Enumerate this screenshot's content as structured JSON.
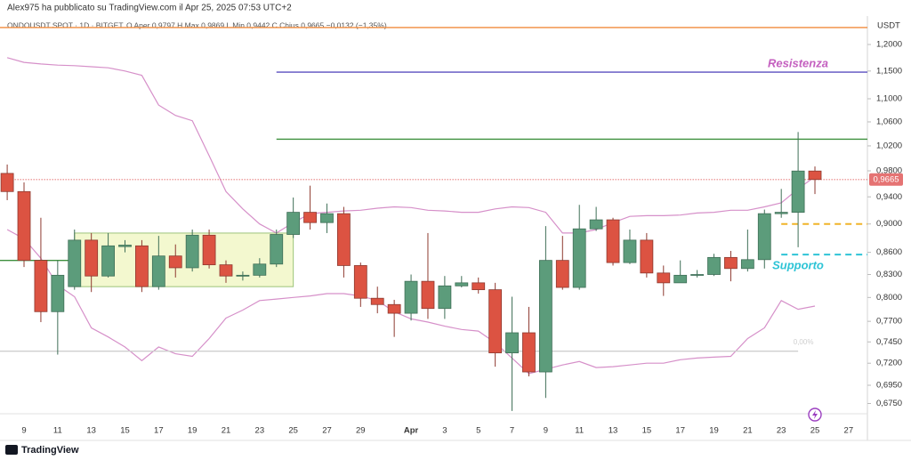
{
  "header": {
    "author_line": "Alex975 ha pubblicato su TradingView.com il Apr 25, 2025 07:53 UTC+2",
    "logo": "TradingView"
  },
  "chart_data": {
    "type": "candlestick",
    "title": "ONDOUSDT SPOT · 1D · BITGET",
    "subtitle": "O Aper 0,9797  H Max 0,9869  L Min 0,9442  C Chius 0,9665  −0,0132 (−1,35%)",
    "y_axis_label": "USDT",
    "log_scale": true,
    "grid": false,
    "up_color": "#5c9c7b",
    "down_color": "#dc5342",
    "categories": [
      null,
      "9",
      null,
      "11",
      null,
      "13",
      null,
      "15",
      null,
      "17",
      null,
      "19",
      null,
      "21",
      null,
      "23",
      null,
      "25",
      null,
      "27",
      null,
      "29",
      null,
      null,
      "Apr",
      null,
      "3",
      null,
      "5",
      null,
      "7",
      null,
      "9",
      null,
      "11",
      null,
      "13",
      null,
      "15",
      null,
      "17",
      null,
      "19",
      null,
      "21",
      null,
      "23",
      null,
      "25",
      null,
      "27"
    ],
    "open": [
      0.976,
      0.948,
      0.849,
      0.782,
      0.814,
      0.877,
      0.828,
      0.868,
      0.869,
      0.814,
      0.855,
      0.839,
      0.884,
      0.843,
      0.828,
      0.829,
      0.844,
      0.885,
      0.917,
      0.902,
      0.915,
      0.842,
      0.799,
      0.791,
      0.78,
      0.821,
      0.786,
      0.815,
      0.819,
      0.81,
      0.732,
      0.756,
      0.71,
      0.849,
      0.813,
      0.893,
      0.906,
      0.846,
      0.877,
      0.832,
      0.819,
      0.829,
      0.83,
      0.853,
      0.838,
      0.85,
      0.915,
      0.917,
      0.9797,
      null,
      null
    ],
    "high": [
      0.99,
      0.962,
      0.909,
      0.849,
      0.892,
      0.887,
      0.887,
      0.877,
      0.877,
      0.883,
      0.871,
      0.892,
      0.892,
      0.849,
      0.834,
      0.852,
      0.892,
      0.939,
      0.957,
      0.93,
      0.925,
      0.846,
      0.814,
      0.797,
      0.83,
      0.887,
      0.828,
      0.828,
      0.826,
      0.819,
      0.801,
      0.788,
      0.897,
      0.883,
      0.928,
      0.925,
      0.909,
      0.892,
      0.887,
      0.842,
      0.849,
      0.836,
      0.858,
      0.862,
      0.892,
      0.921,
      0.952,
      1.043,
      0.9869,
      null,
      null
    ],
    "low": [
      0.935,
      0.84,
      0.769,
      0.73,
      0.81,
      0.807,
      0.826,
      0.86,
      0.807,
      0.81,
      0.826,
      0.834,
      0.838,
      0.819,
      0.822,
      0.826,
      0.84,
      0.88,
      0.892,
      0.887,
      0.826,
      0.788,
      0.78,
      0.751,
      0.771,
      0.773,
      0.773,
      0.813,
      0.805,
      0.716,
      0.667,
      0.705,
      0.681,
      0.81,
      0.81,
      0.89,
      0.842,
      0.844,
      0.826,
      0.802,
      0.819,
      0.826,
      0.828,
      0.821,
      0.834,
      0.838,
      0.909,
      0.867,
      0.9442,
      null,
      null
    ],
    "close": [
      0.948,
      0.849,
      0.782,
      0.829,
      0.877,
      0.828,
      0.869,
      0.87,
      0.814,
      0.855,
      0.839,
      0.884,
      0.843,
      0.828,
      0.829,
      0.844,
      0.885,
      0.917,
      0.902,
      0.915,
      0.842,
      0.799,
      0.791,
      0.78,
      0.821,
      0.786,
      0.815,
      0.819,
      0.81,
      0.732,
      0.756,
      0.71,
      0.849,
      0.813,
      0.893,
      0.906,
      0.846,
      0.877,
      0.832,
      0.819,
      0.829,
      0.83,
      0.853,
      0.838,
      0.85,
      0.915,
      0.917,
      0.9797,
      0.9665,
      null,
      null
    ],
    "bands": {
      "color": "#d690c9",
      "upper": [
        1.175,
        1.166,
        1.163,
        1.161,
        1.16,
        1.158,
        1.156,
        1.15,
        1.142,
        1.089,
        1.071,
        1.062,
        1.004,
        0.948,
        0.922,
        0.9,
        0.887,
        0.902,
        0.915,
        0.917,
        0.919,
        0.92,
        0.923,
        0.925,
        0.924,
        0.92,
        0.919,
        0.917,
        0.917,
        0.922,
        0.925,
        0.924,
        0.917,
        0.887,
        0.887,
        0.892,
        0.902,
        0.911,
        0.912,
        0.912,
        0.913,
        0.916,
        0.917,
        0.92,
        0.92,
        0.925,
        0.931,
        0.952,
        0.971,
        null,
        null
      ],
      "lower": [
        0.892,
        0.879,
        0.852,
        0.816,
        0.801,
        0.762,
        0.751,
        0.739,
        0.723,
        0.739,
        0.731,
        0.728,
        0.749,
        0.774,
        0.784,
        0.796,
        0.798,
        0.8,
        0.802,
        0.805,
        0.805,
        0.802,
        0.796,
        0.782,
        0.773,
        0.769,
        0.764,
        0.76,
        0.758,
        0.744,
        0.726,
        0.708,
        0.713,
        0.718,
        0.722,
        0.715,
        0.716,
        0.718,
        0.72,
        0.72,
        0.724,
        0.726,
        0.727,
        0.728,
        0.749,
        0.762,
        0.796,
        0.785,
        0.789,
        null,
        null
      ]
    },
    "zone": {
      "top": 0.887,
      "bottom": 0.814,
      "start": 4,
      "end": 17,
      "color": "#f3f8cf",
      "border": "#9cc47a"
    },
    "levels": [
      {
        "value": 1.233,
        "color": "#f08a3c",
        "style": "solid",
        "start": -0.5
      },
      {
        "value": 1.148,
        "color": "#5a4fbf",
        "style": "solid",
        "start": 16,
        "label": "Resistenza",
        "label_color": "#c45fbf"
      },
      {
        "value": 1.031,
        "color": "#3d8f3d",
        "style": "solid",
        "start": 16
      },
      {
        "value": 0.9665,
        "color": "#e57373",
        "style": "dotted",
        "start": -0.5,
        "axis_label": "0,9665"
      },
      {
        "value": 0.9,
        "color": "#f0b429",
        "style": "dashed",
        "start": 46
      },
      {
        "value": 0.857,
        "color": "#2ec4d6",
        "style": "dashed",
        "start": 46,
        "label": "Supporto",
        "label_color": "#2ec4d6"
      },
      {
        "value": 0.849,
        "color": "#3d8f3d",
        "style": "solid",
        "start": -0.5,
        "end": 4
      },
      {
        "value": 0.734,
        "color": "#cfcfcf",
        "style": "solid",
        "start": -0.5,
        "end": 47,
        "label": "0,00%",
        "label_color": "#cfcfcf"
      }
    ],
    "ylim": [
      0.664,
      1.256
    ],
    "yticks": [
      {
        "value": 1.2,
        "label": "1,2000"
      },
      {
        "value": 1.15,
        "label": "1,1500"
      },
      {
        "value": 1.1,
        "label": "1,1000"
      },
      {
        "value": 1.06,
        "label": "1,0600"
      },
      {
        "value": 1.02,
        "label": "1,0200"
      },
      {
        "value": 0.98,
        "label": "0,9800"
      },
      {
        "value": 0.94,
        "label": "0,9400"
      },
      {
        "value": 0.9,
        "label": "0,9000"
      },
      {
        "value": 0.86,
        "label": "0,8600"
      },
      {
        "value": 0.83,
        "label": "0,8300"
      },
      {
        "value": 0.8,
        "label": "0,8000"
      },
      {
        "value": 0.77,
        "label": "0,7700"
      },
      {
        "value": 0.745,
        "label": "0,7450"
      },
      {
        "value": 0.72,
        "label": "0,7200"
      },
      {
        "value": 0.695,
        "label": "0,6950"
      },
      {
        "value": 0.675,
        "label": "0,6750"
      }
    ]
  }
}
